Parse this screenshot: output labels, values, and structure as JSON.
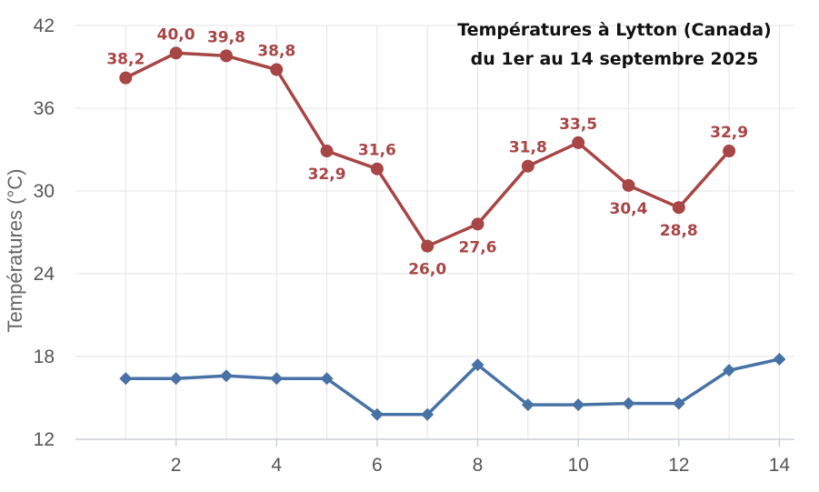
{
  "chart_data": {
    "type": "line",
    "title_lines": [
      "Températures à Lytton (Canada)",
      "du 1er au 14 septembre 2025"
    ],
    "xlabel": "",
    "ylabel": "Températures (°C)",
    "xlim": [
      0,
      14.3
    ],
    "ylim": [
      12,
      42
    ],
    "xticks": [
      2,
      4,
      6,
      8,
      10,
      12,
      14
    ],
    "yticks": [
      12,
      18,
      24,
      30,
      36,
      42
    ],
    "grid": true,
    "legend": "none",
    "series": [
      {
        "color": "#a84545",
        "marker": "circle",
        "show_labels": true,
        "x": [
          1,
          2,
          3,
          4,
          5,
          6,
          7,
          8,
          9,
          10,
          11,
          12,
          13
        ],
        "values": [
          38.2,
          40.0,
          39.8,
          38.8,
          32.9,
          31.6,
          26.0,
          27.6,
          31.8,
          33.5,
          30.4,
          28.8,
          32.9
        ],
        "labels": [
          "38,2",
          "40,0",
          "39,8",
          "38,8",
          "32,9",
          "31,6",
          "26,0",
          "27,6",
          "31,8",
          "33,5",
          "30,4",
          "28,8",
          "32,9"
        ],
        "label_pos": [
          "above",
          "above",
          "above",
          "above",
          "below",
          "above",
          "below",
          "below",
          "above",
          "above",
          "below",
          "below",
          "above"
        ]
      },
      {
        "color": "#4872a6",
        "marker": "diamond",
        "show_labels": false,
        "x": [
          1,
          2,
          3,
          4,
          5,
          6,
          7,
          8,
          9,
          10,
          11,
          12,
          13,
          14
        ],
        "values": [
          16.4,
          16.4,
          16.6,
          16.4,
          16.4,
          13.8,
          13.8,
          17.4,
          14.5,
          14.5,
          14.6,
          14.6,
          17.0,
          17.8
        ]
      }
    ]
  }
}
